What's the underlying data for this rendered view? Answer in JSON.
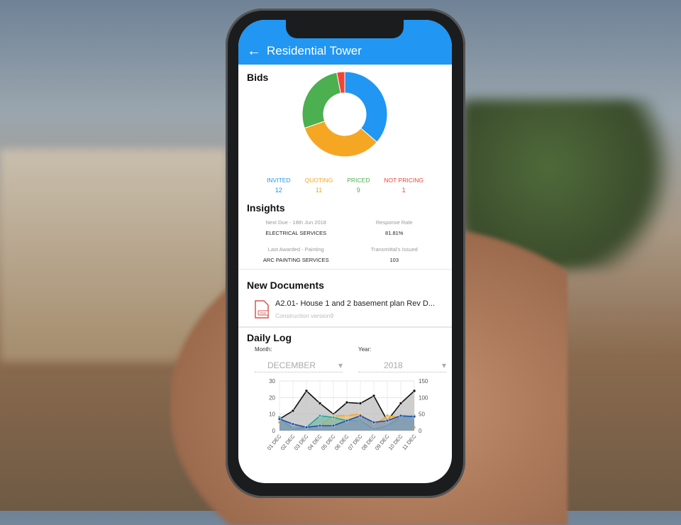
{
  "header": {
    "title": "Residential Tower",
    "back_icon": "arrow-left-icon",
    "color": "#2196F3"
  },
  "bids": {
    "title": "Bids",
    "segments": [
      {
        "label": "INVITED",
        "value": 12,
        "color": "#2196F3"
      },
      {
        "label": "QUOTING",
        "value": 11,
        "color": "#F5A623"
      },
      {
        "label": "PRICED",
        "value": 9,
        "color": "#4CAF50"
      },
      {
        "label": "NOT PRICING",
        "value": 1,
        "color": "#F44336"
      }
    ]
  },
  "insights": {
    "title": "Insights",
    "items": [
      {
        "label": "Next Due - 18th Jun 2018",
        "value": "ELECTRICAL SERVICES"
      },
      {
        "label": "Response Rate",
        "value": "81.81%"
      },
      {
        "label": "Last Awarded - Painting",
        "value": "ARC PAINTING SERVICES"
      },
      {
        "label": "Transmittal's Issued",
        "value": "103"
      }
    ]
  },
  "documents": {
    "title": "New Documents",
    "items": [
      {
        "name": "A2.01- House 1 and 2 basement plan Rev D...",
        "subtitle": "Construction version9",
        "icon": "pdf-file-icon"
      }
    ]
  },
  "daily_log": {
    "title": "Daily Log",
    "month_label": "Month:",
    "month_value": "DECEMBER",
    "year_label": "Year:",
    "year_value": "2018"
  },
  "chart_data": {
    "type": "area",
    "categories": [
      "01 DEC",
      "02 DEC",
      "03 DEC",
      "04 DEC",
      "05 DEC",
      "06 DEC",
      "07 DEC",
      "08 DEC",
      "09 DEC",
      "10 DEC",
      "11 DEC"
    ],
    "y_left": {
      "range": [
        0,
        30
      ],
      "ticks": [
        0,
        10,
        20,
        30
      ]
    },
    "y_right": {
      "range": [
        0,
        150
      ],
      "ticks": [
        0,
        50,
        100,
        150
      ]
    },
    "grid": true,
    "series": [
      {
        "color": "#111111",
        "fill": "#bdbdbd",
        "values": [
          7,
          12,
          24,
          16.5,
          10,
          17,
          16.5,
          21,
          6,
          16.5,
          24
        ]
      },
      {
        "color": "#F5A623",
        "fill": "#e0c48a",
        "values": [
          5,
          2,
          2,
          3,
          9,
          9,
          10,
          3,
          9,
          8,
          2
        ]
      },
      {
        "color": "#26A69A",
        "fill": "#7fb8a8",
        "values": [
          8,
          1,
          2,
          9,
          8,
          6,
          6,
          1,
          3,
          8,
          9
        ]
      },
      {
        "color": "#1E4FA8",
        "fill": "#7f95b8",
        "values": [
          7,
          4,
          2,
          3,
          3,
          6,
          9,
          5,
          6,
          9,
          8.5
        ]
      }
    ]
  }
}
